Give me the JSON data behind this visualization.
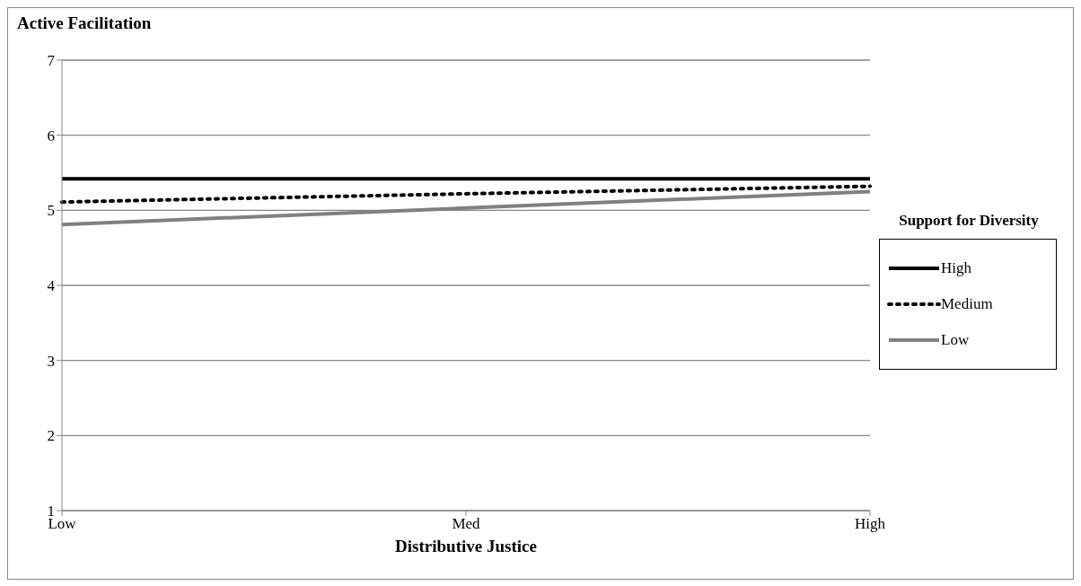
{
  "chart_data": {
    "type": "line",
    "title": "Active Facilitation",
    "xlabel": "Distributive Justice",
    "legend_title": "Support for Diversity",
    "categories": [
      "Low",
      "Med",
      "High"
    ],
    "series": [
      {
        "name": "High",
        "color": "#000000",
        "line_style": "solid",
        "values": [
          5.42,
          5.42,
          5.42
        ]
      },
      {
        "name": "Medium",
        "color": "#000000",
        "line_style": "dotted",
        "values": [
          5.11,
          5.22,
          5.32
        ]
      },
      {
        "name": "Low",
        "color": "#808080",
        "line_style": "solid",
        "values": [
          4.81,
          5.03,
          5.25
        ]
      }
    ],
    "ylim": [
      1,
      7
    ],
    "yticks": [
      1,
      2,
      3,
      4,
      5,
      6,
      7
    ],
    "grid": "y",
    "legend": "right",
    "marker": "none"
  }
}
